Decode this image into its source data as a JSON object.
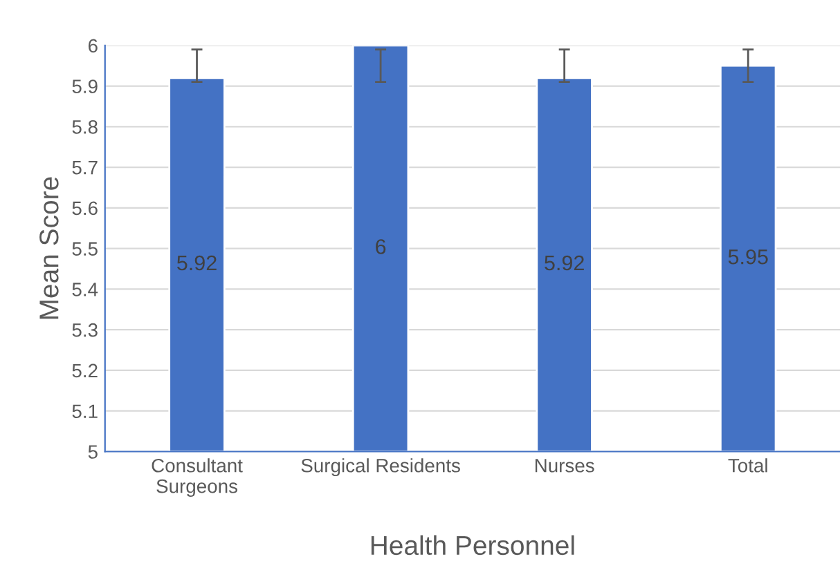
{
  "chart_data": {
    "type": "bar",
    "xlabel": "Health Personnel",
    "ylabel": "Mean Score",
    "categories": [
      "Consultant\nSurgeons",
      "Surgical Residents",
      "Nurses",
      "Total"
    ],
    "values": [
      5.92,
      6,
      5.92,
      5.95
    ],
    "errors": [
      [
        5.91,
        5.99
      ],
      [
        5.91,
        5.99
      ],
      [
        5.91,
        5.99
      ],
      [
        5.91,
        5.99
      ]
    ],
    "color": "#4472c4",
    "ylim": [
      5,
      6
    ],
    "yticks": [
      5,
      5.1,
      5.2,
      5.3,
      5.4,
      5.5,
      5.6,
      5.7,
      5.8,
      5.9,
      6
    ],
    "data_labels": true,
    "grid": "y"
  }
}
